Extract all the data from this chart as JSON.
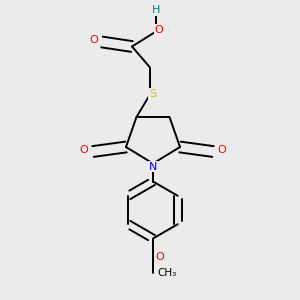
{
  "bg_color": "#ebebeb",
  "bond_color": "#000000",
  "atom_colors": {
    "O": "#ff0000",
    "N": "#0000ff",
    "S": "#cccc00",
    "H": "#008080",
    "C": "#000000"
  },
  "lw": 1.4,
  "fontsize": 8.0
}
